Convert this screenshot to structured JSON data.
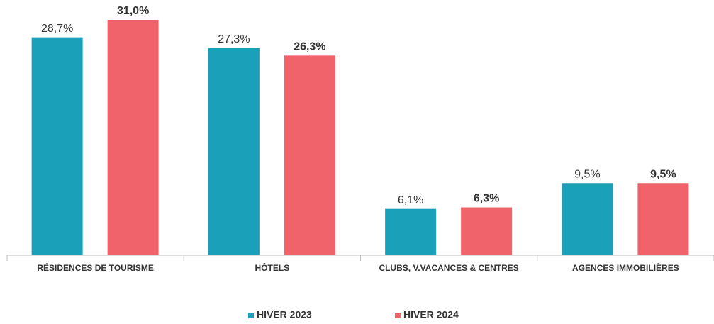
{
  "chart_data": {
    "type": "bar",
    "categories": [
      "RÉSIDENCES DE TOURISME",
      "HÔTELS",
      "CLUBS, V.VACANCES & CENTRES",
      "AGENCES IMMOBILIÈRES"
    ],
    "series": [
      {
        "name": "HIVER 2023",
        "color": "#1aa1b9",
        "values": [
          28.7,
          27.3,
          6.1,
          9.5
        ],
        "value_labels": [
          "28,7%",
          "27,3%",
          "6,1%",
          "9,5%"
        ]
      },
      {
        "name": "HIVER 2024",
        "color": "#f0636a",
        "values": [
          31.0,
          26.3,
          6.3,
          9.5
        ],
        "value_labels": [
          "31,0%",
          "26,3%",
          "6,3%",
          "9,5%"
        ]
      }
    ],
    "legend": "bottom"
  }
}
